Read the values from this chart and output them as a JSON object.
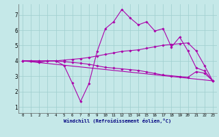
{
  "xlabel": "Windchill (Refroidissement éolien,°C)",
  "background_color": "#c5e8e8",
  "grid_color": "#9ecece",
  "line_color": "#aa00aa",
  "xlim": [
    -0.5,
    23.5
  ],
  "ylim": [
    0.6,
    7.7
  ],
  "xticks": [
    0,
    1,
    2,
    3,
    4,
    5,
    6,
    7,
    8,
    9,
    10,
    11,
    12,
    13,
    14,
    15,
    16,
    17,
    18,
    19,
    20,
    21,
    22,
    23
  ],
  "yticks": [
    1,
    2,
    3,
    4,
    5,
    6,
    7
  ],
  "line1_x": [
    0,
    1,
    2,
    3,
    4,
    5,
    6,
    7,
    8,
    9,
    10,
    11,
    12,
    13,
    14,
    15,
    16,
    17,
    18,
    19,
    20,
    21,
    22,
    23
  ],
  "line1_y": [
    4.0,
    4.0,
    3.9,
    4.0,
    4.0,
    3.7,
    2.55,
    1.35,
    2.5,
    4.6,
    6.1,
    6.55,
    7.35,
    6.8,
    6.35,
    6.55,
    5.95,
    6.1,
    4.9,
    5.55,
    4.65,
    3.55,
    3.35,
    2.7
  ],
  "line2_x": [
    0,
    1,
    2,
    3,
    4,
    5,
    6,
    7,
    8,
    9,
    10,
    11,
    12,
    13,
    14,
    15,
    16,
    17,
    18,
    19,
    20,
    21,
    22,
    23
  ],
  "line2_y": [
    4.0,
    4.0,
    4.0,
    4.0,
    4.0,
    4.05,
    4.1,
    4.15,
    4.22,
    4.32,
    4.42,
    4.52,
    4.62,
    4.67,
    4.72,
    4.82,
    4.92,
    5.02,
    5.07,
    5.12,
    5.17,
    4.65,
    3.7,
    2.7
  ],
  "line3_x": [
    0,
    1,
    2,
    3,
    4,
    5,
    6,
    7,
    8,
    9,
    10,
    11,
    12,
    13,
    14,
    15,
    16,
    17,
    18,
    19,
    20,
    21,
    22,
    23
  ],
  "line3_y": [
    4.0,
    4.0,
    4.0,
    4.0,
    4.0,
    3.95,
    3.9,
    3.85,
    3.78,
    3.68,
    3.58,
    3.53,
    3.48,
    3.43,
    3.38,
    3.28,
    3.18,
    3.08,
    3.03,
    2.98,
    2.93,
    3.3,
    3.2,
    2.7
  ],
  "line4_x": [
    0,
    23
  ],
  "line4_y": [
    4.0,
    2.7
  ]
}
